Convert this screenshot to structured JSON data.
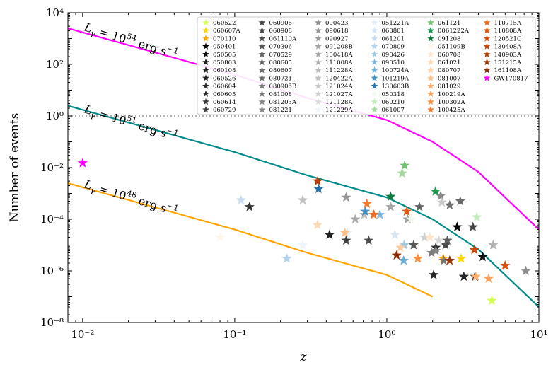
{
  "chart_data": {
    "type": "scatter",
    "xlabel": "z",
    "ylabel": "Number of events",
    "xscale": "log",
    "yscale": "log",
    "xlim": [
      0.008,
      10
    ],
    "ylim": [
      1e-08,
      10000
    ],
    "x_ticks": [
      0.01,
      0.1,
      1,
      10
    ],
    "x_tick_labels": [
      "10⁻²",
      "10⁻¹",
      "10⁰",
      "10¹"
    ],
    "y_ticks": [
      1e-08,
      1e-06,
      0.0001,
      0.01,
      1,
      100,
      10000
    ],
    "y_tick_labels": [
      "10⁻⁸",
      "10⁻⁶",
      "10⁻⁴",
      "10⁻²",
      "10⁰",
      "10²",
      "10⁴"
    ],
    "grid": false,
    "legend_position": "top-right",
    "reference_line": {
      "y": 1,
      "style": "dotted",
      "color": "#b0b0b0"
    },
    "curves": [
      {
        "label_base": "L",
        "label_sub": "γ",
        "label_eq": " = 10",
        "label_exp": "54",
        "label_unit": "erg s",
        "label_unit_exp": "−1",
        "color": "#ff00ff",
        "x": [
          0.008,
          0.1,
          0.3,
          1,
          2,
          4,
          6,
          10
        ],
        "y": [
          2500,
          40,
          5,
          0.7,
          0.1,
          0.0068,
          0.0007,
          4e-05
        ]
      },
      {
        "label_base": "L",
        "label_sub": "γ",
        "label_eq": " = 10",
        "label_exp": "51",
        "label_unit": "erg s",
        "label_unit_exp": "−1",
        "color": "#008b8b",
        "x": [
          0.008,
          0.1,
          0.3,
          1,
          2,
          4,
          6,
          10
        ],
        "y": [
          2.5,
          0.04,
          0.005,
          0.0007,
          0.0001,
          6.8e-06,
          7e-07,
          4e-08
        ]
      },
      {
        "label_base": "L",
        "label_sub": "γ",
        "label_eq": " = 10",
        "label_exp": "48",
        "label_unit": "erg s",
        "label_unit_exp": "−1",
        "color": "#ffa500",
        "x": [
          0.008,
          0.1,
          0.3,
          1,
          2
        ],
        "y": [
          0.0025,
          4e-05,
          5e-06,
          7e-07,
          1e-07
        ]
      }
    ],
    "series": [
      {
        "name": "060522",
        "color": "#d4ff54",
        "x": 4.9,
        "y": 7e-08
      },
      {
        "name": "060607A",
        "color": "#ffd700",
        "x": 3.08,
        "y": 3e-06
      },
      {
        "name": "070110",
        "color": "#ffa500",
        "x": 2.35,
        "y": 3e-06
      },
      {
        "name": "050401",
        "color": "#000000",
        "x": 2.9,
        "y": 5e-05
      },
      {
        "name": "050505",
        "color": "#111111",
        "x": 4.27,
        "y": 3.5e-06
      },
      {
        "name": "050803",
        "color": "#222222",
        "x": 0.42,
        "y": 2.5e-05
      },
      {
        "name": "060108",
        "color": "#262626",
        "x": 2.03,
        "y": 7e-07
      },
      {
        "name": "060526",
        "color": "#262626",
        "x": 3.21,
        "y": 6e-07
      },
      {
        "name": "060604",
        "color": "#303030",
        "x": 2.1,
        "y": 8e-06
      },
      {
        "name": "060605",
        "color": "#333333",
        "x": 3.8,
        "y": 6e-07
      },
      {
        "name": "060614",
        "color": "#383838",
        "x": 0.125,
        "y": 0.0003
      },
      {
        "name": "060729",
        "color": "#404040",
        "x": 0.54,
        "y": 1.5e-05
      },
      {
        "name": "060906",
        "color": "#454545",
        "x": 3.68,
        "y": 5e-05
      },
      {
        "name": "060908",
        "color": "#4a4a4a",
        "x": 2.43,
        "y": 1e-05
      },
      {
        "name": "061110A",
        "color": "#505050",
        "x": 0.76,
        "y": 1.5e-05
      },
      {
        "name": "070306",
        "color": "#585858",
        "x": 1.5,
        "y": 1e-05
      },
      {
        "name": "070529",
        "color": "#606060",
        "x": 2.5,
        "y": 1.5e-05
      },
      {
        "name": "080605",
        "color": "#666666",
        "x": 1.64,
        "y": 0.0003
      },
      {
        "name": "080607",
        "color": "#6b6b6b",
        "x": 3.04,
        "y": 0.0005
      },
      {
        "name": "080721",
        "color": "#707070",
        "x": 2.59,
        "y": 0.00035
      },
      {
        "name": "080905B",
        "color": "#777777",
        "x": 2.37,
        "y": 2.5e-06
      },
      {
        "name": "081008",
        "color": "#7c7c7c",
        "x": 1.97,
        "y": 5e-06
      },
      {
        "name": "081203A",
        "color": "#828282",
        "x": 2.1,
        "y": 6e-06
      },
      {
        "name": "081221",
        "color": "#888888",
        "x": 2.26,
        "y": 0.0008
      },
      {
        "name": "090423",
        "color": "#8f8f8f",
        "x": 8.2,
        "y": 1e-06
      },
      {
        "name": "090618",
        "color": "#959595",
        "x": 0.54,
        "y": 0.0007
      },
      {
        "name": "090927",
        "color": "#9c9c9c",
        "x": 1.37,
        "y": 0.0001
      },
      {
        "name": "091208B",
        "color": "#a3a3a3",
        "x": 1.06,
        "y": 0.0003
      },
      {
        "name": "100418A",
        "color": "#aaaaaa",
        "x": 0.62,
        "y": 0.0001
      },
      {
        "name": "111008A",
        "color": "#b2b2b2",
        "x": 5,
        "y": 1e-05
      },
      {
        "name": "111228A",
        "color": "#b9b9b9",
        "x": 0.71,
        "y": 0.00015
      },
      {
        "name": "120422A",
        "color": "#c0c0c0",
        "x": 0.28,
        "y": 0.00055
      },
      {
        "name": "121024A",
        "color": "#c8c8c8",
        "x": 2.3,
        "y": 0.00045
      },
      {
        "name": "121027A",
        "color": "#d0d0d0",
        "x": 1.77,
        "y": 2e-05
      },
      {
        "name": "121128A",
        "color": "#d8d8d8",
        "x": 2.2,
        "y": 1.5e-05
      },
      {
        "name": "121229A",
        "color": "#eef4fb",
        "x": 0.28,
        "y": 1e-05
      },
      {
        "name": "051221A",
        "color": "#e3eef9",
        "x": 0.55,
        "y": 3e-05
      },
      {
        "name": "060801",
        "color": "#d6e6f4",
        "x": 1.13,
        "y": 2.5e-05
      },
      {
        "name": "061201",
        "color": "#c6dbef",
        "x": 0.11,
        "y": 0.00055
      },
      {
        "name": "070809",
        "color": "#b4d3e9",
        "x": 0.22,
        "y": 3e-06
      },
      {
        "name": "090426",
        "color": "#9ecae1",
        "x": 1.3,
        "y": 1e-05
      },
      {
        "name": "090510",
        "color": "#80b8d9",
        "x": 0.9,
        "y": 0.00015
      },
      {
        "name": "100724A",
        "color": "#6baed6",
        "x": 1.29,
        "y": 2.5e-06
      },
      {
        "name": "101219A",
        "color": "#4292c6",
        "x": 0.72,
        "y": 0.0002
      },
      {
        "name": "130603B",
        "color": "#2171b5",
        "x": 0.356,
        "y": 0.0015
      },
      {
        "name": "050318",
        "color": "#f2faf0",
        "x": 1.44,
        "y": 0.0001
      },
      {
        "name": "060210",
        "color": "#c7e9c0",
        "x": 3.91,
        "y": 0.00012
      },
      {
        "name": "061007",
        "color": "#a1d99b",
        "x": 1.26,
        "y": 0.006
      },
      {
        "name": "061121",
        "color": "#74c476",
        "x": 1.31,
        "y": 0.012
      },
      {
        "name": "0061222A",
        "color": "#1a9850",
        "x": 2.09,
        "y": 0.0012
      },
      {
        "name": "091208",
        "color": "#0f7a3d",
        "x": 1.06,
        "y": 0.00075
      },
      {
        "name": "051109B",
        "color": "#fff5eb",
        "x": 0.08,
        "y": 2e-05
      },
      {
        "name": "060708",
        "color": "#fee6ce",
        "x": 1.92,
        "y": 2e-05
      },
      {
        "name": "061021",
        "color": "#fdd9b4",
        "x": 0.35,
        "y": 6e-05
      },
      {
        "name": "080707",
        "color": "#fdd0a2",
        "x": 1.23,
        "y": 8e-06
      },
      {
        "name": "081007",
        "color": "#fdc089",
        "x": 0.53,
        "y": 3e-05
      },
      {
        "name": "081029",
        "color": "#fdae6b",
        "x": 3.85,
        "y": 6e-07
      },
      {
        "name": "100219A",
        "color": "#fda15c",
        "x": 4.67,
        "y": 5e-07
      },
      {
        "name": "100302A",
        "color": "#fd8d3c",
        "x": 1.6,
        "y": 3e-06
      },
      {
        "name": "100425A",
        "color": "#f87d2a",
        "x": 0.74,
        "y": 0.0004
      },
      {
        "name": "110715A",
        "color": "#f36c1c",
        "x": 0.82,
        "y": 0.00015
      },
      {
        "name": "110808A",
        "color": "#e6550d",
        "x": 1.35,
        "y": 0.0002
      },
      {
        "name": "120521C",
        "color": "#dd4d0a",
        "x": 6,
        "y": 1.6e-06
      },
      {
        "name": "130408A",
        "color": "#cc4606",
        "x": 3.76,
        "y": 6.5e-06
      },
      {
        "name": "140903A",
        "color": "#b53f04",
        "x": 0.351,
        "y": 0.003
      },
      {
        "name": "151215A",
        "color": "#9e3803",
        "x": 2.59,
        "y": 2.5e-06
      },
      {
        "name": "161108A",
        "color": "#8c2d04",
        "x": 1.16,
        "y": 4e-06
      },
      {
        "name": "GW170817",
        "color": "#ff00ff",
        "x": 0.01,
        "y": 0.015
      }
    ]
  }
}
